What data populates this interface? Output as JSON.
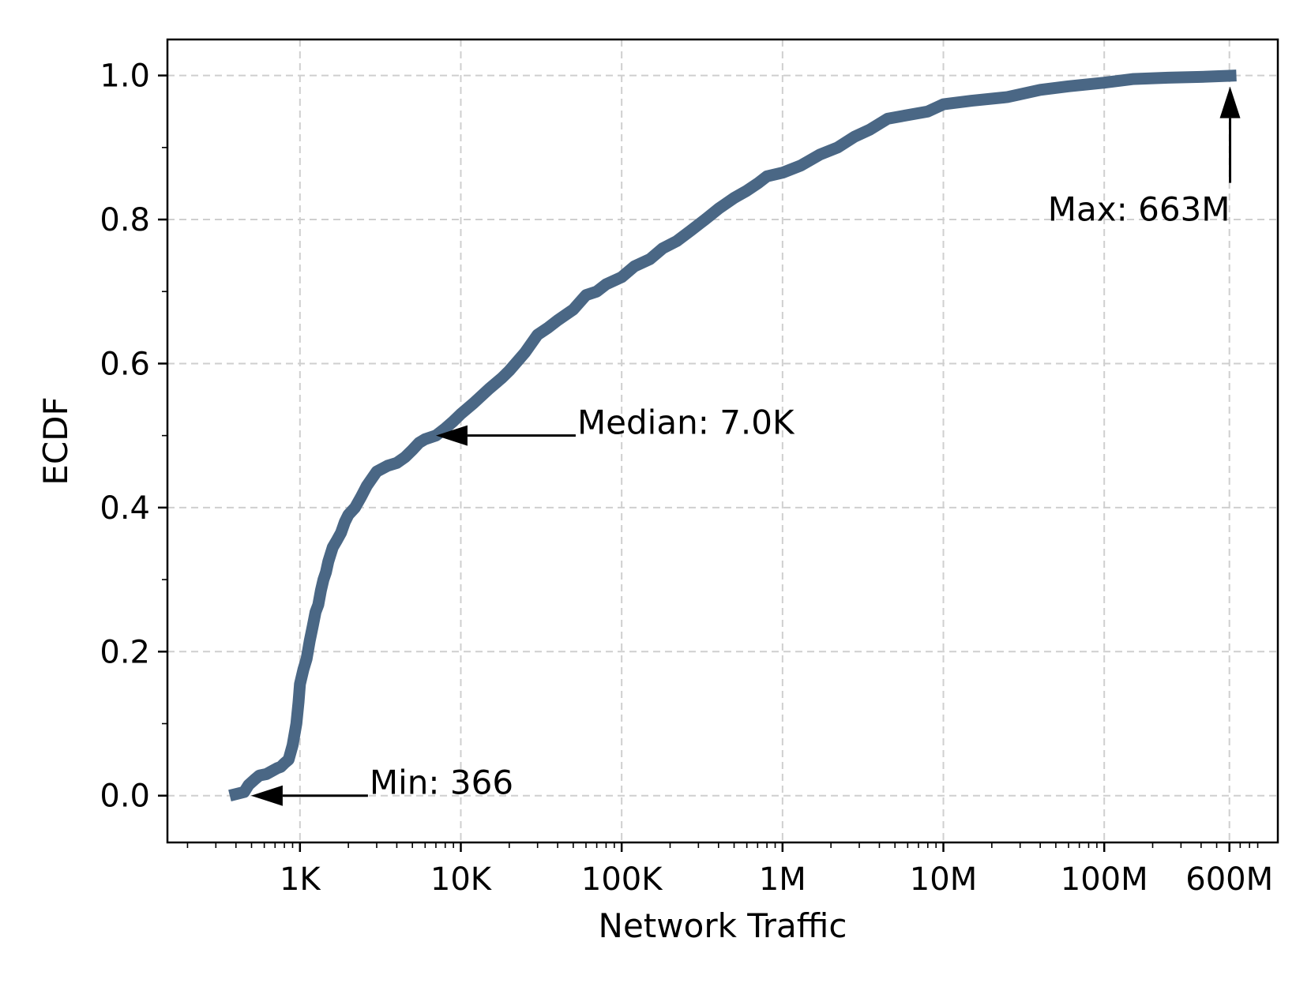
{
  "chart_data": {
    "type": "line",
    "title": "",
    "xlabel": "Network Traffic",
    "ylabel": "ECDF",
    "xscale": "log",
    "xlim": [
      150,
      1200000000
    ],
    "ylim": [
      -0.065,
      1.05
    ],
    "grid": true,
    "x_ticks": [
      {
        "value": 1000,
        "label": "1K"
      },
      {
        "value": 10000,
        "label": "10K"
      },
      {
        "value": 100000,
        "label": "100K"
      },
      {
        "value": 1000000,
        "label": "1M"
      },
      {
        "value": 10000000,
        "label": "10M"
      },
      {
        "value": 100000000,
        "label": "100M"
      },
      {
        "value": 600000000,
        "label": "600M"
      }
    ],
    "y_ticks": [
      {
        "value": 0.0,
        "label": "0.0"
      },
      {
        "value": 0.2,
        "label": "0.2"
      },
      {
        "value": 0.4,
        "label": "0.4"
      },
      {
        "value": 0.6,
        "label": "0.6"
      },
      {
        "value": 0.8,
        "label": "0.8"
      },
      {
        "value": 1.0,
        "label": "1.0"
      }
    ],
    "series": [
      {
        "color": "#4a6785",
        "x": [
          366,
          450,
          480,
          520,
          560,
          620,
          680,
          720,
          760,
          800,
          850,
          900,
          950,
          980,
          1000,
          1050,
          1100,
          1150,
          1200,
          1250,
          1300,
          1350,
          1400,
          1450,
          1500,
          1600,
          1700,
          1800,
          1900,
          2000,
          2200,
          2400,
          2600,
          3000,
          3500,
          4000,
          4500,
          5000,
          5500,
          6000,
          7000,
          8000,
          9000,
          10000,
          12000,
          15000,
          18000,
          20000,
          25000,
          30000,
          35000,
          40000,
          50000,
          60000,
          70000,
          80000,
          100000,
          120000,
          150000,
          180000,
          220000,
          270000,
          330000,
          400000,
          500000,
          600000,
          700000,
          800000,
          1000000,
          1300000,
          1700000,
          2200000,
          2800000,
          3500000,
          4500000,
          6000000,
          8000000,
          10000000,
          15000000,
          25000000,
          40000000,
          60000000,
          100000000,
          150000000,
          250000000,
          400000000,
          663000000
        ],
        "y": [
          0.0,
          0.005,
          0.015,
          0.022,
          0.028,
          0.03,
          0.035,
          0.038,
          0.04,
          0.045,
          0.05,
          0.07,
          0.1,
          0.13,
          0.155,
          0.175,
          0.19,
          0.215,
          0.235,
          0.255,
          0.265,
          0.285,
          0.3,
          0.31,
          0.325,
          0.345,
          0.355,
          0.365,
          0.38,
          0.39,
          0.4,
          0.415,
          0.43,
          0.45,
          0.458,
          0.462,
          0.47,
          0.48,
          0.49,
          0.495,
          0.5,
          0.51,
          0.52,
          0.53,
          0.545,
          0.565,
          0.58,
          0.59,
          0.615,
          0.64,
          0.65,
          0.66,
          0.675,
          0.695,
          0.7,
          0.71,
          0.72,
          0.735,
          0.745,
          0.76,
          0.77,
          0.785,
          0.8,
          0.815,
          0.83,
          0.84,
          0.85,
          0.86,
          0.865,
          0.875,
          0.89,
          0.9,
          0.915,
          0.925,
          0.94,
          0.945,
          0.95,
          0.96,
          0.965,
          0.97,
          0.98,
          0.985,
          0.99,
          0.995,
          0.997,
          0.998,
          1.0
        ]
      }
    ],
    "annotations": [
      {
        "id": "min",
        "text": "Min: 366",
        "point": [
          366,
          0.0
        ]
      },
      {
        "id": "median",
        "text": "Median: 7.0K",
        "point": [
          7000,
          0.5
        ]
      },
      {
        "id": "max",
        "text": "Max: 663M",
        "point": [
          663000000,
          1.0
        ]
      }
    ]
  }
}
